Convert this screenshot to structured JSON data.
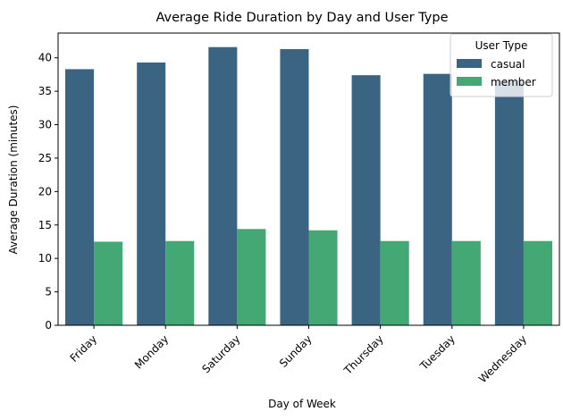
{
  "chart_data": {
    "type": "bar",
    "title": "Average Ride Duration by Day and User Type",
    "xlabel": "Day of Week",
    "ylabel": "Average Duration (minutes)",
    "categories": [
      "Friday",
      "Monday",
      "Saturday",
      "Sunday",
      "Thursday",
      "Tuesday",
      "Wednesday"
    ],
    "series": [
      {
        "name": "casual",
        "values": [
          38.3,
          39.3,
          41.6,
          41.3,
          37.4,
          37.6,
          36.6
        ]
      },
      {
        "name": "member",
        "values": [
          12.5,
          12.6,
          14.4,
          14.2,
          12.6,
          12.6,
          12.6
        ]
      }
    ],
    "ylim": [
      0,
      43.7
    ],
    "yticks": [
      0,
      5,
      10,
      15,
      20,
      25,
      30,
      35,
      40
    ],
    "grid": false,
    "legend": {
      "title": "User Type",
      "placement": "top-right"
    }
  },
  "colors": {
    "casual": "#3b6483",
    "member": "#43a874"
  }
}
